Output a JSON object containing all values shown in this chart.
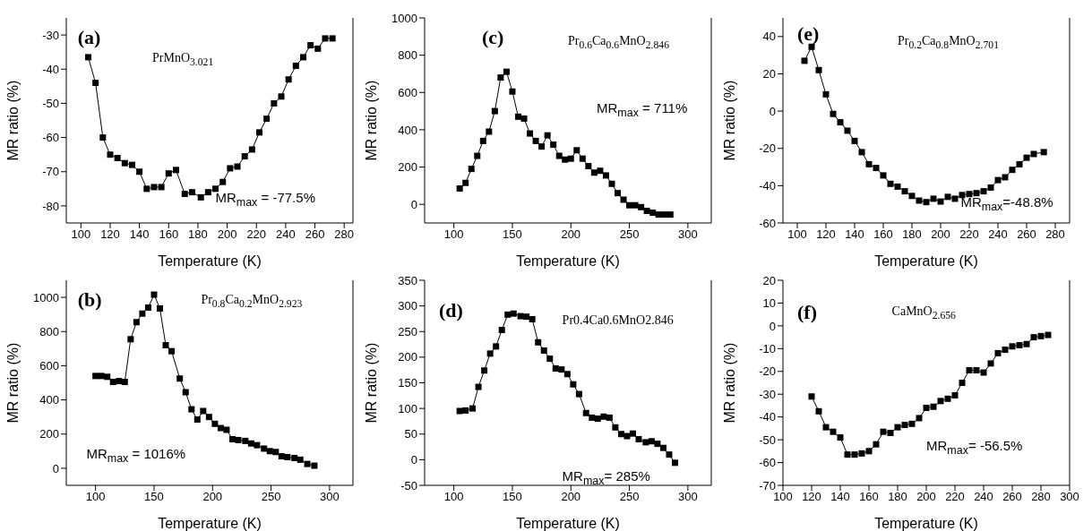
{
  "chart_data": [
    {
      "type": "line",
      "xlabel": "Temperature (K)",
      "ylabel": "MR ratio (%)",
      "annotations": [
        "(a)",
        "PrMnO$_{3.021}$",
        "MR$_{max}$ = -77.5%"
      ],
      "marker": "square",
      "line_style": "solid",
      "grid": false,
      "legend": false,
      "xlim": [
        90,
        286
      ],
      "xticks": [
        100,
        120,
        140,
        160,
        180,
        200,
        220,
        240,
        260,
        280
      ],
      "ylim": [
        -85,
        -25
      ],
      "yticks": [
        -80,
        -70,
        -60,
        -50,
        -40,
        -30
      ],
      "series": [
        {
          "color": "#000000",
          "x": [
            105,
            110,
            115,
            120,
            125,
            130,
            135,
            140,
            145,
            150,
            155,
            160,
            165,
            171,
            176,
            182,
            187,
            192,
            197,
            202,
            207,
            212,
            217,
            222,
            227,
            232,
            237,
            242,
            247,
            252,
            257,
            262,
            267,
            272
          ],
          "values": [
            -36.5,
            -44,
            -60,
            -65,
            -66,
            -67.5,
            -68,
            -70,
            -75,
            -74.5,
            -74.5,
            -70.5,
            -69.5,
            -76.5,
            -76,
            -77.5,
            -76,
            -75,
            -73,
            -69,
            -68.5,
            -65.5,
            -63.5,
            -58.5,
            -54.5,
            -50,
            -48,
            -43,
            -39,
            -36.5,
            -33,
            -34,
            -31,
            -31
          ]
        }
      ]
    },
    {
      "type": "line",
      "xlabel": "Temperature (K)",
      "ylabel": "MR  ratio (%)",
      "annotations": [
        "(c)",
        "Pr$_{0.6}$Ca$_{0.6}$MnO$_{2.846}$",
        "MR$_{max}$ = 711%"
      ],
      "marker": "square",
      "line_style": "solid",
      "grid": false,
      "legend": false,
      "xlim": [
        75,
        320
      ],
      "xticks": [
        100,
        150,
        200,
        250,
        300
      ],
      "ylim": [
        -100,
        1000
      ],
      "yticks": [
        0,
        200,
        400,
        600,
        800,
        1000
      ],
      "series": [
        {
          "color": "#000000",
          "x": [
            105,
            110,
            115,
            120,
            125,
            130,
            135,
            140,
            145,
            150,
            155,
            160,
            165,
            170,
            175,
            180,
            185,
            190,
            195,
            200,
            205,
            210,
            215,
            220,
            225,
            230,
            235,
            240,
            245,
            250,
            255,
            260,
            265,
            270,
            275,
            280,
            285
          ],
          "values": [
            85,
            115,
            190,
            260,
            340,
            390,
            500,
            680,
            711,
            605,
            470,
            460,
            380,
            340,
            310,
            370,
            320,
            260,
            240,
            245,
            290,
            245,
            205,
            170,
            180,
            155,
            110,
            60,
            25,
            -5,
            -5,
            -15,
            -35,
            -45,
            -55,
            -55,
            -55
          ]
        }
      ]
    },
    {
      "type": "line",
      "xlabel": "Temperature (K)",
      "ylabel": "MR  ratio (%)",
      "annotations": [
        "(e)",
        "Pr$_{0.2}$Ca$_{0.8}$MnO$_{2.701}$",
        "MR$_{max}$=-48.8%"
      ],
      "marker": "square",
      "line_style": "solid",
      "grid": false,
      "legend": false,
      "xlim": [
        90,
        290
      ],
      "xticks": [
        100,
        120,
        140,
        160,
        180,
        200,
        220,
        240,
        260,
        280
      ],
      "ylim": [
        -60,
        50
      ],
      "yticks": [
        -60,
        -40,
        -20,
        0,
        20,
        40
      ],
      "series": [
        {
          "color": "#000000",
          "x": [
            105,
            110,
            115,
            120,
            125,
            130,
            135,
            140,
            145,
            150,
            155,
            160,
            165,
            170,
            175,
            180,
            185,
            190,
            195,
            200,
            205,
            210,
            215,
            220,
            225,
            230,
            235,
            240,
            245,
            250,
            255,
            260,
            265,
            272
          ],
          "values": [
            27,
            34.5,
            22,
            9,
            -1.5,
            -6,
            -10.5,
            -16,
            -22,
            -28.5,
            -30.5,
            -34.5,
            -39,
            -40.5,
            -43,
            -45.5,
            -48,
            -48.8,
            -47,
            -48.5,
            -46,
            -47,
            -45,
            -44.5,
            -44,
            -43,
            -41,
            -37,
            -35.5,
            -31.5,
            -28.5,
            -25,
            -23,
            -22
          ]
        }
      ]
    },
    {
      "type": "line",
      "xlabel": "Temperature (K)",
      "ylabel": "MR ratio (%)",
      "annotations": [
        "(b)",
        "Pr$_{0.8}$Ca$_{0.2}$MnO$_{2.923}$",
        "MR$_{max}$ = 1016%"
      ],
      "marker": "square",
      "line_style": "solid",
      "grid": false,
      "legend": false,
      "xlim": [
        75,
        320
      ],
      "xticks": [
        100,
        150,
        200,
        250,
        300
      ],
      "ylim": [
        -100,
        1100
      ],
      "yticks": [
        0,
        200,
        400,
        600,
        800,
        1000
      ],
      "series": [
        {
          "color": "#000000",
          "x": [
            100,
            105,
            110,
            115,
            120,
            125,
            130,
            135,
            140,
            145,
            150,
            155,
            160,
            165,
            172,
            177,
            182,
            187,
            192,
            197,
            202,
            207,
            212,
            217,
            222,
            228,
            233,
            238,
            244,
            249,
            254,
            259,
            264,
            270,
            275,
            281,
            287
          ],
          "values": [
            540,
            540,
            535,
            505,
            510,
            505,
            755,
            855,
            905,
            940,
            1016,
            935,
            720,
            685,
            525,
            445,
            345,
            285,
            335,
            300,
            260,
            235,
            225,
            170,
            165,
            160,
            145,
            135,
            115,
            100,
            95,
            70,
            65,
            60,
            50,
            25,
            15
          ]
        }
      ]
    },
    {
      "type": "line",
      "xlabel": "Temperature (K)",
      "ylabel": "MR  ratio (%)",
      "annotations": [
        "(d)",
        "Pr0.4Ca0.6MnO2.846",
        "MR$_{max}$= 285%"
      ],
      "marker": "square",
      "line_style": "solid",
      "grid": false,
      "legend": false,
      "xlim": [
        75,
        320
      ],
      "xticks": [
        100,
        150,
        200,
        250,
        300
      ],
      "ylim": [
        -50,
        350
      ],
      "yticks": [
        -50,
        0,
        50,
        100,
        150,
        200,
        250,
        300,
        350
      ],
      "series": [
        {
          "color": "#000000",
          "x": [
            105,
            110,
            116,
            121,
            126,
            131,
            136,
            141,
            146,
            151,
            157,
            162,
            167,
            172,
            177,
            182,
            187,
            192,
            197,
            202,
            207,
            213,
            218,
            223,
            228,
            233,
            238,
            243,
            248,
            253,
            258,
            264,
            269,
            274,
            279,
            284,
            289
          ],
          "values": [
            95,
            96,
            100,
            142,
            174,
            207,
            221,
            253,
            283,
            285,
            280,
            279,
            274,
            229,
            213,
            197,
            178,
            176,
            167,
            147,
            128,
            91,
            82,
            80,
            84,
            82,
            63,
            50,
            46,
            51,
            40,
            34,
            36,
            31,
            23,
            10,
            -6
          ]
        }
      ]
    },
    {
      "type": "line",
      "xlabel": "Temperature (K)",
      "ylabel": "MR  ratio (%)",
      "annotations": [
        "(f)",
        "CaMnO$_{2.656}$",
        "MR$_{max}$= -56.5%"
      ],
      "marker": "square",
      "line_style": "solid",
      "grid": false,
      "legend": false,
      "xlim": [
        100,
        300
      ],
      "xticks": [
        100,
        120,
        140,
        160,
        180,
        200,
        220,
        240,
        260,
        280,
        300
      ],
      "ylim": [
        -70,
        20
      ],
      "yticks": [
        -70,
        -60,
        -50,
        -40,
        -30,
        -20,
        -10,
        0,
        10,
        20
      ],
      "series": [
        {
          "color": "#000000",
          "x": [
            120,
            125,
            130,
            135,
            140,
            145,
            150,
            155,
            160,
            165,
            170,
            175,
            180,
            185,
            190,
            195,
            200,
            205,
            210,
            215,
            220,
            225,
            230,
            235,
            240,
            245,
            250,
            255,
            260,
            265,
            270,
            275,
            280,
            285
          ],
          "values": [
            -31,
            -37.5,
            -44.5,
            -46.5,
            -49,
            -56.5,
            -56.5,
            -56,
            -55,
            -52,
            -46.5,
            -47,
            -44.5,
            -43.5,
            -43,
            -40.5,
            -36,
            -35.5,
            -33,
            -32,
            -30.5,
            -25,
            -19.5,
            -19.5,
            -20.5,
            -16.5,
            -12,
            -10.5,
            -9,
            -8.5,
            -8,
            -5,
            -4.5,
            -4
          ]
        }
      ]
    }
  ]
}
